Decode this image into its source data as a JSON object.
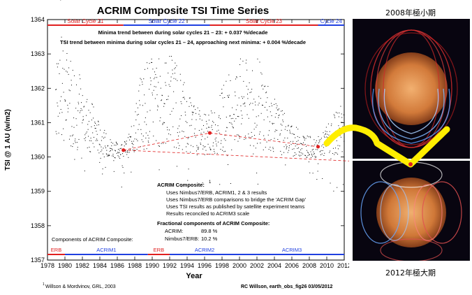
{
  "chart_data": {
    "type": "scatter",
    "title": "ACRIM Composite TSI Time Series",
    "xlabel": "Year",
    "ylabel": "TSI @ 1 AU (w/m2)",
    "xlim": [
      1978,
      2012
    ],
    "ylim": [
      1357,
      1364
    ],
    "xticks": [
      "1978",
      "1980",
      "1982",
      "1984",
      "1986",
      "1988",
      "1990",
      "1992",
      "1994",
      "1996",
      "1998",
      "2000",
      "2002",
      "2004",
      "2006",
      "2008",
      "2010",
      "2012"
    ],
    "yticks": [
      "1357",
      "1358",
      "1359",
      "1360",
      "1361",
      "1362",
      "1363",
      "1364"
    ],
    "trend_line_1": "Minima trend between  during solar cycles 21 – 23: + 0.037 %/decade",
    "trend_line_2": "TSI trend between minima during solar cycles 21 – 24, approaching next minima: + 0.004 %/decade",
    "cycles": [
      {
        "label": "Solar Cycle 21",
        "color": "#e02020"
      },
      {
        "label": "Solar Cycle 22",
        "color": "#2040e0"
      },
      {
        "label": "Solar Cycle 23",
        "color": "#e02020"
      },
      {
        "label": "Cycle 24",
        "color": "#2040e0"
      }
    ],
    "components": [
      {
        "label": "ERB",
        "color": "#e02020"
      },
      {
        "label": "ACRIM1",
        "color": "#2040e0"
      },
      {
        "label": "ERB",
        "color": "#e02020"
      },
      {
        "label": "ACRIM2",
        "color": "#2040e0"
      },
      {
        "label": "ACRIM3",
        "color": "#2040e0"
      }
    ],
    "components_label": "Components of ACRIM Composite:",
    "composite_box": {
      "heading": "ACRIM Composite:",
      "superscript": "1",
      "lines": [
        "Uses Nimbus7/ERB, ACRIM1, 2 & 3  results",
        "Uses Nimbus7/ERB comparisons to bridge the 'ACRIM Gap'",
        "Uses TSI results as published by satellite experiment teams",
        "Results reconciled to ACRIM3 scale"
      ],
      "fraction_heading": "Fractional components of ACRIM Composite:",
      "fractions": [
        {
          "label": "ACRIM:",
          "value": "89.8 %"
        },
        {
          "label": "Nimbus7/ERB:",
          "value": "10.2 %"
        }
      ]
    },
    "minima_points": [
      {
        "x": 1986.7,
        "y": 1360.2
      },
      {
        "x": 1996.6,
        "y": 1360.7
      },
      {
        "x": 2009.0,
        "y": 1360.3
      }
    ],
    "trend_end": {
      "x": 2012.0,
      "y": 1360.0
    },
    "series": [
      {
        "values_desc": "daily TSI",
        "points": [
          [
            1978.9,
            1362.0
          ],
          [
            1979.2,
            1362.8
          ],
          [
            1979.5,
            1362.5
          ],
          [
            1980.0,
            1361.8
          ],
          [
            1980.5,
            1361.7
          ],
          [
            1981.0,
            1361.6
          ],
          [
            1981.5,
            1361.5
          ],
          [
            1982.0,
            1361.2
          ],
          [
            1982.5,
            1361.0
          ],
          [
            1983.0,
            1360.9
          ],
          [
            1983.5,
            1360.7
          ],
          [
            1984.0,
            1360.5
          ],
          [
            1984.5,
            1360.4
          ],
          [
            1985.0,
            1360.3
          ],
          [
            1985.5,
            1360.25
          ],
          [
            1986.0,
            1360.2
          ],
          [
            1986.5,
            1360.2
          ],
          [
            1987.0,
            1360.25
          ],
          [
            1987.5,
            1360.4
          ],
          [
            1988.0,
            1360.8
          ],
          [
            1988.5,
            1361.2
          ],
          [
            1989.0,
            1361.5
          ],
          [
            1989.5,
            1361.6
          ],
          [
            1990.0,
            1361.6
          ],
          [
            1990.5,
            1361.5
          ],
          [
            1991.0,
            1361.7
          ],
          [
            1991.5,
            1361.6
          ],
          [
            1992.0,
            1361.7
          ],
          [
            1992.5,
            1361.6
          ],
          [
            1993.0,
            1361.5
          ],
          [
            1993.5,
            1361.3
          ],
          [
            1994.0,
            1361.0
          ],
          [
            1994.5,
            1360.9
          ],
          [
            1995.0,
            1360.8
          ],
          [
            1995.5,
            1360.75
          ],
          [
            1996.0,
            1360.7
          ],
          [
            1996.5,
            1360.7
          ],
          [
            1997.0,
            1360.75
          ],
          [
            1997.5,
            1360.9
          ],
          [
            1998.0,
            1361.1
          ],
          [
            1998.5,
            1361.3
          ],
          [
            1999.0,
            1361.4
          ],
          [
            1999.5,
            1361.5
          ],
          [
            2000.0,
            1361.6
          ],
          [
            2000.5,
            1361.5
          ],
          [
            2001.0,
            1361.6
          ],
          [
            2001.5,
            1361.6
          ],
          [
            2002.0,
            1361.6
          ],
          [
            2002.5,
            1361.5
          ],
          [
            2003.0,
            1361.3
          ],
          [
            2003.5,
            1361.1
          ],
          [
            2004.0,
            1360.9
          ],
          [
            2004.5,
            1360.8
          ],
          [
            2005.0,
            1360.7
          ],
          [
            2005.5,
            1360.6
          ],
          [
            2006.0,
            1360.5
          ],
          [
            2006.5,
            1360.45
          ],
          [
            2007.0,
            1360.4
          ],
          [
            2007.5,
            1360.35
          ],
          [
            2008.0,
            1360.3
          ],
          [
            2008.5,
            1360.3
          ],
          [
            2009.0,
            1360.3
          ],
          [
            2009.5,
            1360.35
          ],
          [
            2010.0,
            1360.5
          ],
          [
            2010.5,
            1360.6
          ],
          [
            2011.0,
            1360.7
          ],
          [
            2011.5,
            1360.8
          ],
          [
            2012.0,
            1360.9
          ]
        ]
      }
    ]
  },
  "footnote": "Willson & Mordvinov, GRL, 2003",
  "footnote_mark": "1",
  "credit": "RC Willson, earth_obs_fig26  03/05/2012",
  "caption_top": "2008年極小期",
  "caption_bottom": "2012年極大期",
  "annotation_color": "#ffee00"
}
